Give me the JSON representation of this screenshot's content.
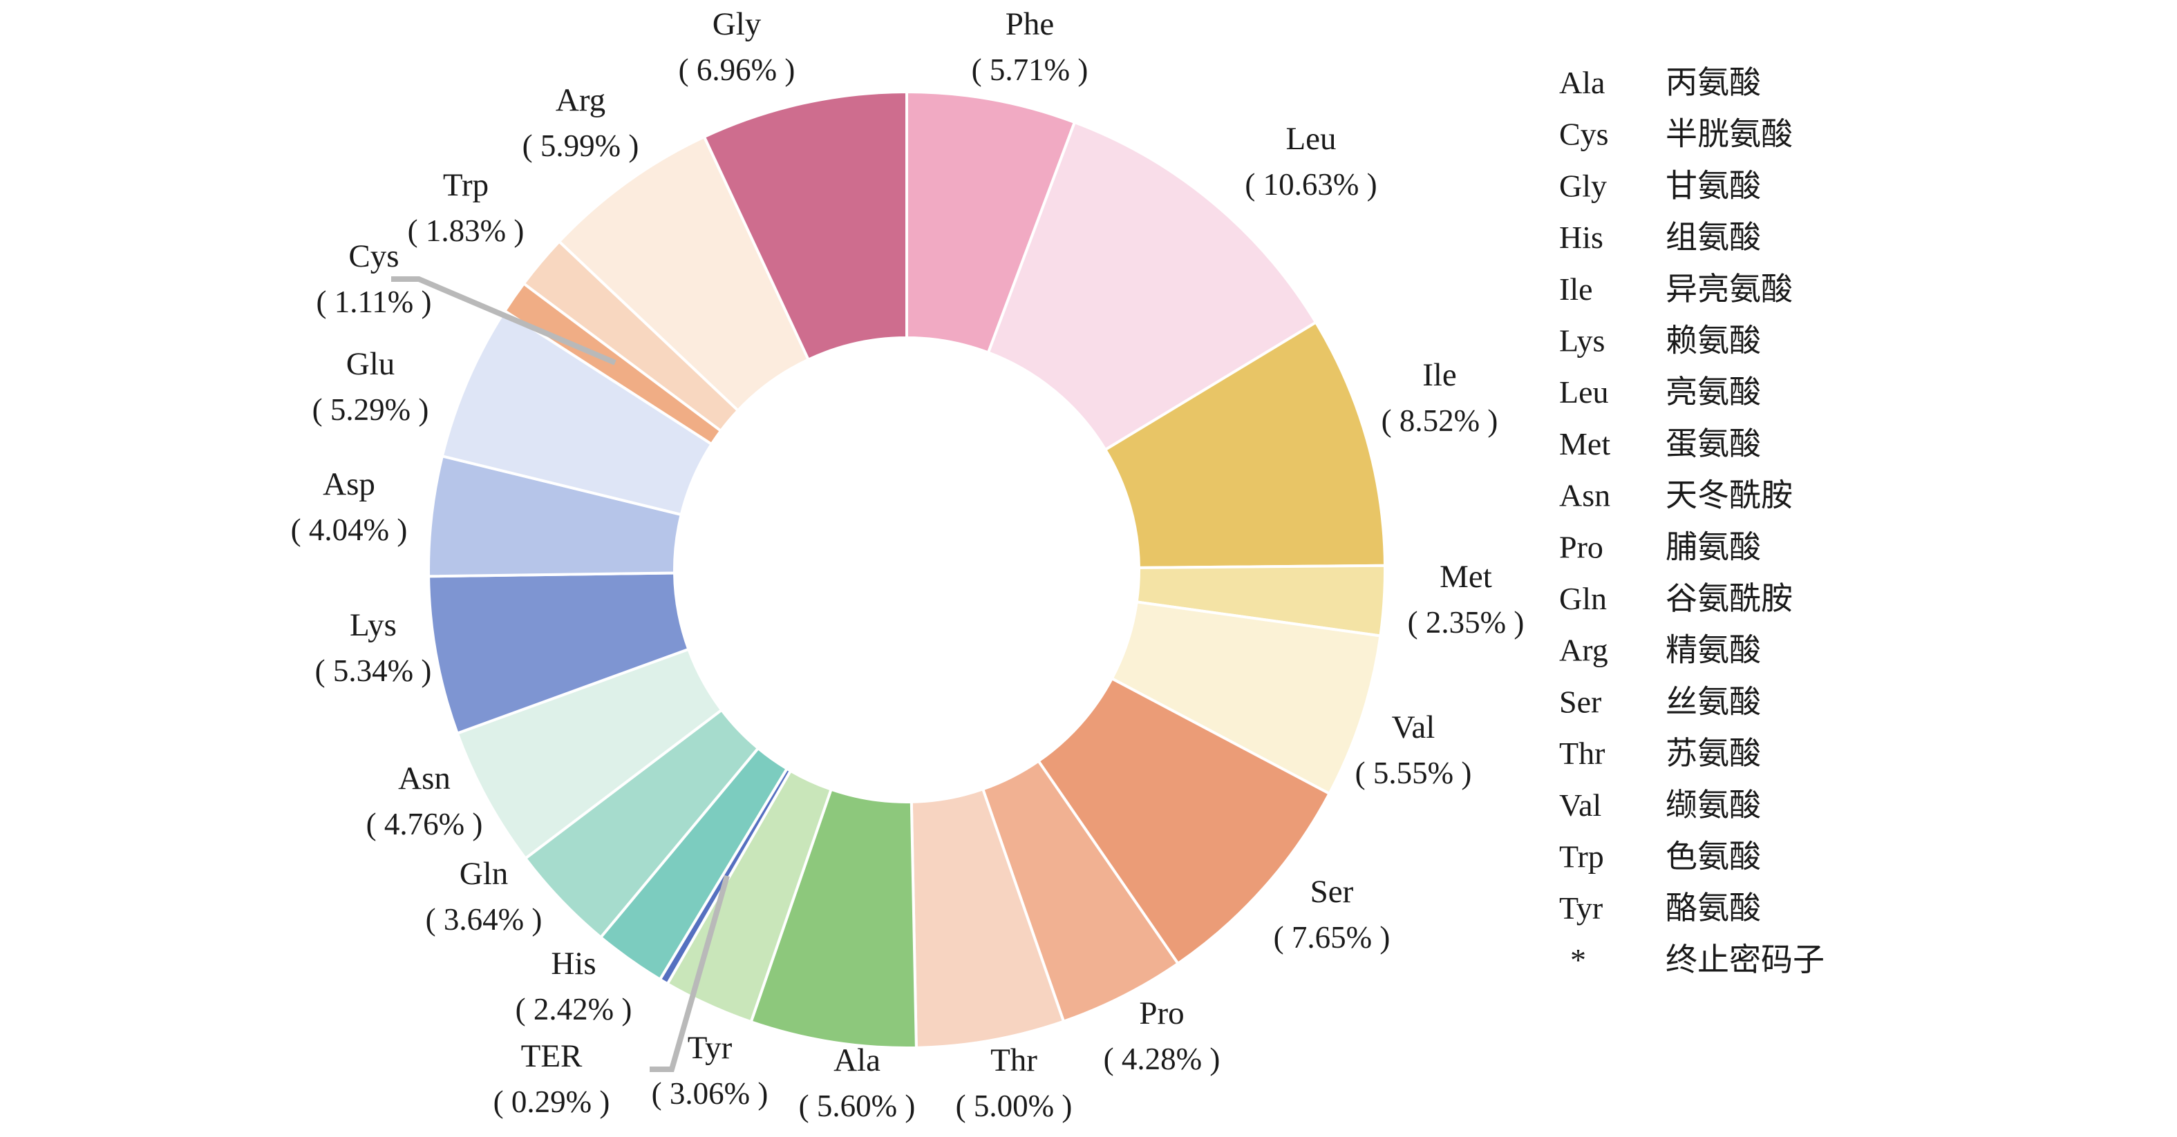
{
  "figure": {
    "background_color": "#ffffff",
    "text_color": "#1a1a1a",
    "leader_line_color": "#b9b9b9"
  },
  "chart_data": {
    "type": "pie",
    "subtype": "donut",
    "title": "",
    "unit": "%",
    "start_angle_deg": 0,
    "direction": "clockwise",
    "grid": false,
    "legend_position": "right",
    "slices": [
      {
        "name": "Phe",
        "value": 5.71,
        "value_label": "( 5.71% )",
        "color": "#f1aac3"
      },
      {
        "name": "Leu",
        "value": 10.63,
        "value_label": "( 10.63% )",
        "color": "#f9dde9"
      },
      {
        "name": "Ile",
        "value": 8.52,
        "value_label": "( 8.52% )",
        "color": "#e8c566"
      },
      {
        "name": "Met",
        "value": 2.35,
        "value_label": "( 2.35% )",
        "color": "#f4e3a5"
      },
      {
        "name": "Val",
        "value": 5.55,
        "value_label": "( 5.55% )",
        "color": "#fbf2d6"
      },
      {
        "name": "Ser",
        "value": 7.65,
        "value_label": "( 7.65% )",
        "color": "#eb9c77"
      },
      {
        "name": "Pro",
        "value": 4.28,
        "value_label": "( 4.28% )",
        "color": "#f1b192"
      },
      {
        "name": "Thr",
        "value": 5.0,
        "value_label": "( 5.00% )",
        "color": "#f7d4c1"
      },
      {
        "name": "Ala",
        "value": 5.6,
        "value_label": "( 5.60% )",
        "color": "#8dc87c"
      },
      {
        "name": "Tyr",
        "value": 3.06,
        "value_label": "( 3.06% )",
        "color": "#c9e6ba"
      },
      {
        "name": "TER",
        "value": 0.29,
        "value_label": "( 0.29% )",
        "color": "#5570c0"
      },
      {
        "name": "His",
        "value": 2.42,
        "value_label": "( 2.42% )",
        "color": "#7cccbf"
      },
      {
        "name": "Gln",
        "value": 3.64,
        "value_label": "( 3.64% )",
        "color": "#a6dccd"
      },
      {
        "name": "Asn",
        "value": 4.76,
        "value_label": "( 4.76% )",
        "color": "#def1e9"
      },
      {
        "name": "Lys",
        "value": 5.34,
        "value_label": "( 5.34% )",
        "color": "#7e95d2"
      },
      {
        "name": "Asp",
        "value": 4.04,
        "value_label": "( 4.04% )",
        "color": "#b6c5e9"
      },
      {
        "name": "Glu",
        "value": 5.29,
        "value_label": "( 5.29% )",
        "color": "#dee5f6"
      },
      {
        "name": "Cys",
        "value": 1.11,
        "value_label": "( 1.11% )",
        "color": "#f0ad85"
      },
      {
        "name": "Trp",
        "value": 1.83,
        "value_label": "( 1.83% )",
        "color": "#f8d7c0"
      },
      {
        "name": "Arg",
        "value": 5.99,
        "value_label": "( 5.99% )",
        "color": "#fcecde"
      },
      {
        "name": "Gly",
        "value": 6.96,
        "value_label": "( 6.96% )",
        "color": "#ce6d8e"
      }
    ],
    "legend": [
      {
        "abbr": "Ala",
        "name_cn": "丙氨酸"
      },
      {
        "abbr": "Cys",
        "name_cn": "半胱氨酸"
      },
      {
        "abbr": "Gly",
        "name_cn": "甘氨酸"
      },
      {
        "abbr": "His",
        "name_cn": "组氨酸"
      },
      {
        "abbr": "Ile",
        "name_cn": "异亮氨酸"
      },
      {
        "abbr": "Lys",
        "name_cn": "赖氨酸"
      },
      {
        "abbr": "Leu",
        "name_cn": "亮氨酸"
      },
      {
        "abbr": "Met",
        "name_cn": "蛋氨酸"
      },
      {
        "abbr": "Asn",
        "name_cn": "天冬酰胺"
      },
      {
        "abbr": "Pro",
        "name_cn": "脯氨酸"
      },
      {
        "abbr": "Gln",
        "name_cn": "谷氨酰胺"
      },
      {
        "abbr": "Arg",
        "name_cn": "精氨酸"
      },
      {
        "abbr": "Ser",
        "name_cn": "丝氨酸"
      },
      {
        "abbr": "Thr",
        "name_cn": "苏氨酸"
      },
      {
        "abbr": "Val",
        "name_cn": "缬氨酸"
      },
      {
        "abbr": "Trp",
        "name_cn": "色氨酸"
      },
      {
        "abbr": "Tyr",
        "name_cn": "酪氨酸"
      },
      {
        "abbr": "*",
        "name_cn": "终止密码子"
      }
    ]
  }
}
